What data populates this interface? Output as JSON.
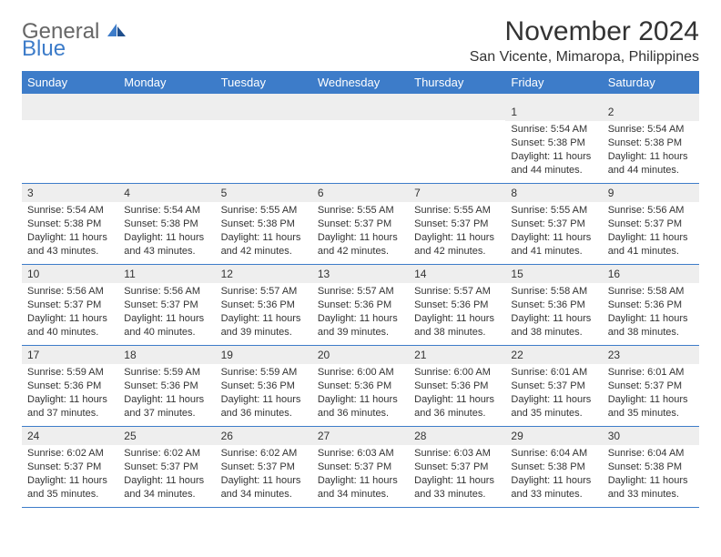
{
  "brand": {
    "general": "General",
    "blue": "Blue"
  },
  "title": "November 2024",
  "location": "San Vicente, Mimaropa, Philippines",
  "colors": {
    "header_bg": "#3d7cc9",
    "daynum_bg": "#eeeeee",
    "rule": "#3d7cc9",
    "text": "#333333",
    "brand_accent": "#3d7cc9"
  },
  "dow": [
    "Sunday",
    "Monday",
    "Tuesday",
    "Wednesday",
    "Thursday",
    "Friday",
    "Saturday"
  ],
  "weeks": [
    [
      {
        "n": "",
        "sr": "",
        "ss": "",
        "dl": ""
      },
      {
        "n": "",
        "sr": "",
        "ss": "",
        "dl": ""
      },
      {
        "n": "",
        "sr": "",
        "ss": "",
        "dl": ""
      },
      {
        "n": "",
        "sr": "",
        "ss": "",
        "dl": ""
      },
      {
        "n": "",
        "sr": "",
        "ss": "",
        "dl": ""
      },
      {
        "n": "1",
        "sr": "Sunrise: 5:54 AM",
        "ss": "Sunset: 5:38 PM",
        "dl": "Daylight: 11 hours and 44 minutes."
      },
      {
        "n": "2",
        "sr": "Sunrise: 5:54 AM",
        "ss": "Sunset: 5:38 PM",
        "dl": "Daylight: 11 hours and 44 minutes."
      }
    ],
    [
      {
        "n": "3",
        "sr": "Sunrise: 5:54 AM",
        "ss": "Sunset: 5:38 PM",
        "dl": "Daylight: 11 hours and 43 minutes."
      },
      {
        "n": "4",
        "sr": "Sunrise: 5:54 AM",
        "ss": "Sunset: 5:38 PM",
        "dl": "Daylight: 11 hours and 43 minutes."
      },
      {
        "n": "5",
        "sr": "Sunrise: 5:55 AM",
        "ss": "Sunset: 5:38 PM",
        "dl": "Daylight: 11 hours and 42 minutes."
      },
      {
        "n": "6",
        "sr": "Sunrise: 5:55 AM",
        "ss": "Sunset: 5:37 PM",
        "dl": "Daylight: 11 hours and 42 minutes."
      },
      {
        "n": "7",
        "sr": "Sunrise: 5:55 AM",
        "ss": "Sunset: 5:37 PM",
        "dl": "Daylight: 11 hours and 42 minutes."
      },
      {
        "n": "8",
        "sr": "Sunrise: 5:55 AM",
        "ss": "Sunset: 5:37 PM",
        "dl": "Daylight: 11 hours and 41 minutes."
      },
      {
        "n": "9",
        "sr": "Sunrise: 5:56 AM",
        "ss": "Sunset: 5:37 PM",
        "dl": "Daylight: 11 hours and 41 minutes."
      }
    ],
    [
      {
        "n": "10",
        "sr": "Sunrise: 5:56 AM",
        "ss": "Sunset: 5:37 PM",
        "dl": "Daylight: 11 hours and 40 minutes."
      },
      {
        "n": "11",
        "sr": "Sunrise: 5:56 AM",
        "ss": "Sunset: 5:37 PM",
        "dl": "Daylight: 11 hours and 40 minutes."
      },
      {
        "n": "12",
        "sr": "Sunrise: 5:57 AM",
        "ss": "Sunset: 5:36 PM",
        "dl": "Daylight: 11 hours and 39 minutes."
      },
      {
        "n": "13",
        "sr": "Sunrise: 5:57 AM",
        "ss": "Sunset: 5:36 PM",
        "dl": "Daylight: 11 hours and 39 minutes."
      },
      {
        "n": "14",
        "sr": "Sunrise: 5:57 AM",
        "ss": "Sunset: 5:36 PM",
        "dl": "Daylight: 11 hours and 38 minutes."
      },
      {
        "n": "15",
        "sr": "Sunrise: 5:58 AM",
        "ss": "Sunset: 5:36 PM",
        "dl": "Daylight: 11 hours and 38 minutes."
      },
      {
        "n": "16",
        "sr": "Sunrise: 5:58 AM",
        "ss": "Sunset: 5:36 PM",
        "dl": "Daylight: 11 hours and 38 minutes."
      }
    ],
    [
      {
        "n": "17",
        "sr": "Sunrise: 5:59 AM",
        "ss": "Sunset: 5:36 PM",
        "dl": "Daylight: 11 hours and 37 minutes."
      },
      {
        "n": "18",
        "sr": "Sunrise: 5:59 AM",
        "ss": "Sunset: 5:36 PM",
        "dl": "Daylight: 11 hours and 37 minutes."
      },
      {
        "n": "19",
        "sr": "Sunrise: 5:59 AM",
        "ss": "Sunset: 5:36 PM",
        "dl": "Daylight: 11 hours and 36 minutes."
      },
      {
        "n": "20",
        "sr": "Sunrise: 6:00 AM",
        "ss": "Sunset: 5:36 PM",
        "dl": "Daylight: 11 hours and 36 minutes."
      },
      {
        "n": "21",
        "sr": "Sunrise: 6:00 AM",
        "ss": "Sunset: 5:36 PM",
        "dl": "Daylight: 11 hours and 36 minutes."
      },
      {
        "n": "22",
        "sr": "Sunrise: 6:01 AM",
        "ss": "Sunset: 5:37 PM",
        "dl": "Daylight: 11 hours and 35 minutes."
      },
      {
        "n": "23",
        "sr": "Sunrise: 6:01 AM",
        "ss": "Sunset: 5:37 PM",
        "dl": "Daylight: 11 hours and 35 minutes."
      }
    ],
    [
      {
        "n": "24",
        "sr": "Sunrise: 6:02 AM",
        "ss": "Sunset: 5:37 PM",
        "dl": "Daylight: 11 hours and 35 minutes."
      },
      {
        "n": "25",
        "sr": "Sunrise: 6:02 AM",
        "ss": "Sunset: 5:37 PM",
        "dl": "Daylight: 11 hours and 34 minutes."
      },
      {
        "n": "26",
        "sr": "Sunrise: 6:02 AM",
        "ss": "Sunset: 5:37 PM",
        "dl": "Daylight: 11 hours and 34 minutes."
      },
      {
        "n": "27",
        "sr": "Sunrise: 6:03 AM",
        "ss": "Sunset: 5:37 PM",
        "dl": "Daylight: 11 hours and 34 minutes."
      },
      {
        "n": "28",
        "sr": "Sunrise: 6:03 AM",
        "ss": "Sunset: 5:37 PM",
        "dl": "Daylight: 11 hours and 33 minutes."
      },
      {
        "n": "29",
        "sr": "Sunrise: 6:04 AM",
        "ss": "Sunset: 5:38 PM",
        "dl": "Daylight: 11 hours and 33 minutes."
      },
      {
        "n": "30",
        "sr": "Sunrise: 6:04 AM",
        "ss": "Sunset: 5:38 PM",
        "dl": "Daylight: 11 hours and 33 minutes."
      }
    ]
  ]
}
